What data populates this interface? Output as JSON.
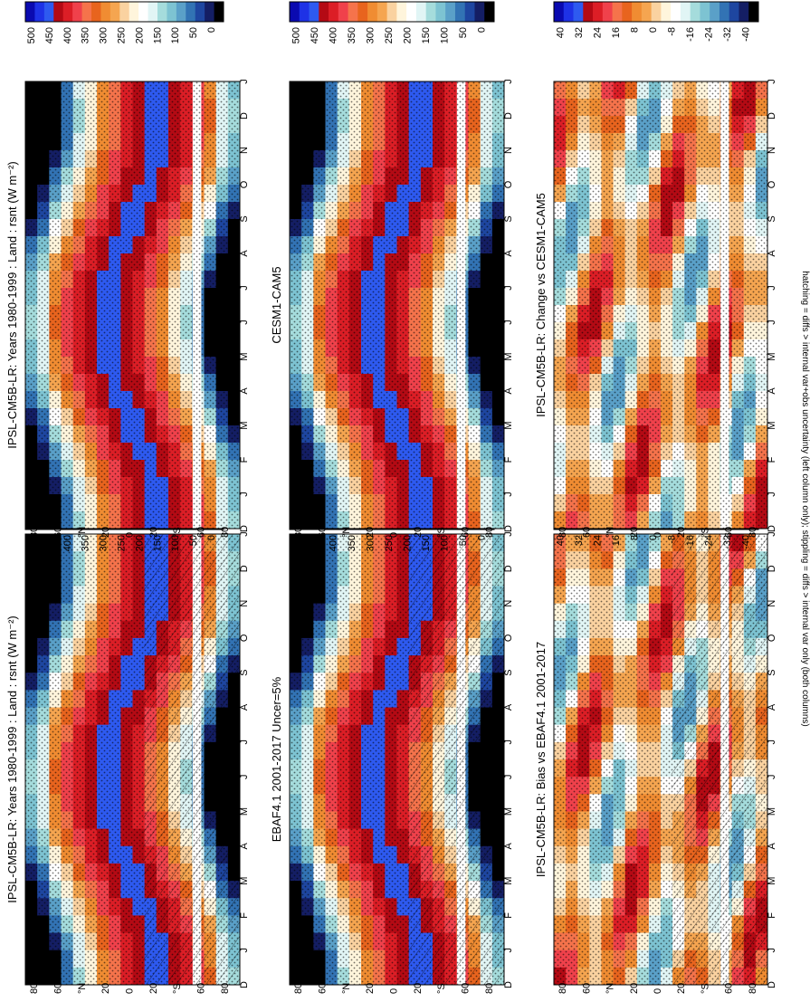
{
  "footer_note": "hatching = diffs > internal var+obs uncertainty (left column only); stippling = diffs > internal var only (both columns)",
  "months": [
    "D",
    "J",
    "F",
    "M",
    "A",
    "M",
    "J",
    "J",
    "A",
    "S",
    "O",
    "N",
    "D",
    "J"
  ],
  "lat_ticks": [
    "80",
    "60",
    "°N",
    "20",
    "0",
    "20",
    "°S",
    "60",
    "80"
  ],
  "palettes": {
    "abs": [
      "#0a0ab0",
      "#1e32e6",
      "#2e5af0",
      "#b40a14",
      "#dc1e26",
      "#f0414b",
      "#f5734b",
      "#e8641e",
      "#f08c32",
      "#f5a550",
      "#fad2a0",
      "#fff5dc",
      "#ffffff",
      "#e1f5f5",
      "#a5dcdc",
      "#7dc3d2",
      "#5aa0c8",
      "#3273b4",
      "#1e46a0",
      "#141e64",
      "#000000"
    ],
    "diff": [
      "#0a0ab0",
      "#1e32e6",
      "#2e5af0",
      "#b40a14",
      "#dc1e26",
      "#f0414b",
      "#f5734b",
      "#e8641e",
      "#f08c32",
      "#f5a550",
      "#fad2a0",
      "#fff5dc",
      "#ffffff",
      "#e1f5f5",
      "#a5dcdc",
      "#7dc3d2",
      "#5aa0c8",
      "#3273b4",
      "#1e46a0",
      "#141e64",
      "#000000"
    ]
  },
  "chart_data": [
    {
      "type": "heatmap",
      "title": "IPSL-CM5B-LR: Years 1980-1999 : Land : rsnt (W m⁻²)",
      "x": "month (D to J)",
      "y": "latitude (90N to 90S)",
      "colorbar": {
        "labels": [
          "500",
          "450",
          "400",
          "350",
          "300",
          "250",
          "200",
          "150",
          "100",
          "50",
          "0"
        ]
      },
      "hatching": true,
      "stippling": true
    },
    {
      "type": "heatmap",
      "title": "IPSL-CM5B-LR: Years 1980-1999 : Land : rsnt (W m⁻²)",
      "x": "month (D to J)",
      "y": "latitude (90N to 90S)",
      "colorbar": {
        "labels": [
          "500",
          "450",
          "400",
          "350",
          "300",
          "250",
          "200",
          "150",
          "100",
          "50",
          "0"
        ]
      },
      "hatching": false,
      "stippling": true
    },
    {
      "type": "heatmap",
      "title": "EBAF4.1 2001-2017 Uncer=5%",
      "x": "month (D to J)",
      "y": "latitude (90N to 90S)",
      "colorbar": {
        "labels": [
          "500",
          "450",
          "400",
          "350",
          "300",
          "250",
          "200",
          "150",
          "100",
          "50",
          "0"
        ]
      },
      "hatching": true,
      "stippling": true
    },
    {
      "type": "heatmap",
      "title": "CESM1-CAM5",
      "x": "month (D to J)",
      "y": "latitude (90N to 90S)",
      "colorbar": {
        "labels": [
          "500",
          "450",
          "400",
          "350",
          "300",
          "250",
          "200",
          "150",
          "100",
          "50",
          "0"
        ]
      },
      "hatching": false,
      "stippling": true
    },
    {
      "type": "heatmap",
      "title": "IPSL-CM5B-LR: Bias vs EBAF4.1 2001-2017",
      "x": "month (D to J)",
      "y": "latitude (90N to 90S)",
      "colorbar": {
        "labels": [
          "40",
          "32",
          "24",
          "16",
          "8",
          "0",
          "-8",
          "-16",
          "-24",
          "-32",
          "-40"
        ]
      },
      "hatching": true,
      "stippling": true
    },
    {
      "type": "heatmap",
      "title": "IPSL-CM5B-LR: Change vs CESM1-CAM5",
      "x": "month (D to J)",
      "y": "latitude (90N to 90S)",
      "colorbar": {
        "labels": [
          "40",
          "32",
          "24",
          "16",
          "8",
          "0",
          "-8",
          "-16",
          "-24",
          "-32",
          "-40"
        ]
      },
      "hatching": false,
      "stippling": true
    }
  ]
}
